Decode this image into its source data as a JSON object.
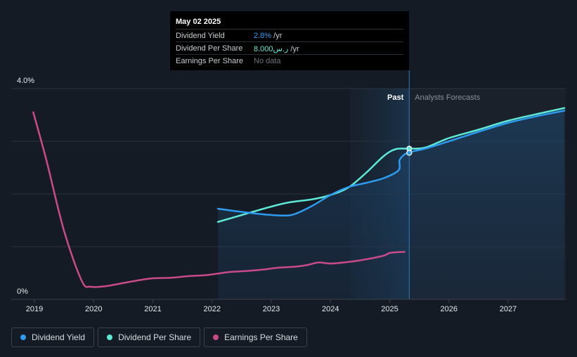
{
  "tooltip": {
    "date": "May 02 2025",
    "rows": [
      {
        "label": "Dividend Yield",
        "value": "2.8%",
        "unit": " /yr"
      },
      {
        "label": "Dividend Per Share",
        "value": "8.000ر.س",
        "unit": " /yr"
      },
      {
        "label": "Earnings Per Share",
        "value": "No data",
        "unit": ""
      }
    ]
  },
  "colors": {
    "background": "#151b24",
    "dividend_yield": "#2d9cf0",
    "dividend_per_share": "#5ee8d6",
    "earnings_per_share": "#c84a8a",
    "grid": "#2c333d"
  },
  "legend": [
    {
      "label": "Dividend Yield",
      "color": "#2d9cf0"
    },
    {
      "label": "Dividend Per Share",
      "color": "#5ee8d6"
    },
    {
      "label": "Earnings Per Share",
      "color": "#c84a8a"
    }
  ],
  "chart_data": {
    "type": "line",
    "title": "",
    "xlabel": "",
    "ylabel": "",
    "ylim": [
      0,
      4.0
    ],
    "xlim": [
      2018.85,
      2027.95
    ],
    "y_tick_labels": [
      {
        "value": 4.0,
        "label": "4.0%"
      },
      {
        "value": 0,
        "label": "0%"
      }
    ],
    "y_gridlines": [
      4.0,
      3.0,
      2.0,
      1.0
    ],
    "x_ticks": [
      2019,
      2020,
      2021,
      2022,
      2023,
      2024,
      2025,
      2026,
      2027
    ],
    "x_tick_labels": [
      "2019",
      "2020",
      "2021",
      "2022",
      "2023",
      "2024",
      "2025",
      "2026",
      "2027"
    ],
    "past_label": "Past",
    "forecast_label": "Analysts Forecasts",
    "past_boundary": 2025.33,
    "highlight_start": 2024.33,
    "series": [
      {
        "name": "Dividend Yield",
        "color": "#2d9cf0",
        "points": [
          [
            2022.1,
            1.72
          ],
          [
            2022.5,
            1.66
          ],
          [
            2022.9,
            1.61
          ],
          [
            2023.2,
            1.59
          ],
          [
            2023.4,
            1.62
          ],
          [
            2023.7,
            1.78
          ],
          [
            2024.0,
            1.98
          ],
          [
            2024.3,
            2.13
          ],
          [
            2024.6,
            2.21
          ],
          [
            2024.9,
            2.3
          ],
          [
            2025.15,
            2.45
          ],
          [
            2025.17,
            2.65
          ],
          [
            2025.3,
            2.78
          ],
          [
            2025.6,
            2.86
          ],
          [
            2026.0,
            3.0
          ],
          [
            2026.5,
            3.18
          ],
          [
            2027.0,
            3.35
          ],
          [
            2027.5,
            3.48
          ],
          [
            2027.95,
            3.58
          ]
        ]
      },
      {
        "name": "Dividend Per Share",
        "color": "#5ee8d6",
        "points": [
          [
            2022.1,
            1.47
          ],
          [
            2022.5,
            1.6
          ],
          [
            2023.0,
            1.76
          ],
          [
            2023.3,
            1.84
          ],
          [
            2023.7,
            1.9
          ],
          [
            2024.0,
            1.98
          ],
          [
            2024.3,
            2.12
          ],
          [
            2024.6,
            2.4
          ],
          [
            2024.9,
            2.72
          ],
          [
            2025.1,
            2.85
          ],
          [
            2025.33,
            2.86
          ],
          [
            2025.6,
            2.88
          ],
          [
            2026.0,
            3.06
          ],
          [
            2026.5,
            3.22
          ],
          [
            2027.0,
            3.39
          ],
          [
            2027.5,
            3.52
          ],
          [
            2027.95,
            3.63
          ]
        ]
      },
      {
        "name": "Earnings Per Share",
        "color": "#c84a8a",
        "points": [
          [
            2018.98,
            3.55
          ],
          [
            2019.2,
            2.65
          ],
          [
            2019.5,
            1.3
          ],
          [
            2019.8,
            0.35
          ],
          [
            2019.95,
            0.24
          ],
          [
            2020.2,
            0.25
          ],
          [
            2020.5,
            0.31
          ],
          [
            2020.8,
            0.37
          ],
          [
            2021.0,
            0.4
          ],
          [
            2021.3,
            0.41
          ],
          [
            2021.6,
            0.44
          ],
          [
            2021.9,
            0.46
          ],
          [
            2022.1,
            0.49
          ],
          [
            2022.3,
            0.52
          ],
          [
            2022.6,
            0.54
          ],
          [
            2022.9,
            0.57
          ],
          [
            2023.1,
            0.6
          ],
          [
            2023.4,
            0.62
          ],
          [
            2023.6,
            0.65
          ],
          [
            2023.8,
            0.7
          ],
          [
            2024.0,
            0.68
          ],
          [
            2024.3,
            0.71
          ],
          [
            2024.6,
            0.76
          ],
          [
            2024.9,
            0.83
          ],
          [
            2025.0,
            0.88
          ],
          [
            2025.2,
            0.9
          ],
          [
            2025.25,
            0.9
          ]
        ]
      }
    ],
    "area_fill": {
      "series": "Dividend Yield",
      "from": 2022.1,
      "to": 2027.95
    },
    "markers": [
      {
        "series": "Dividend Per Share",
        "x": 2025.33,
        "y": 2.86
      },
      {
        "series": "Dividend Yield",
        "x": 2025.33,
        "y": 2.78
      }
    ]
  }
}
